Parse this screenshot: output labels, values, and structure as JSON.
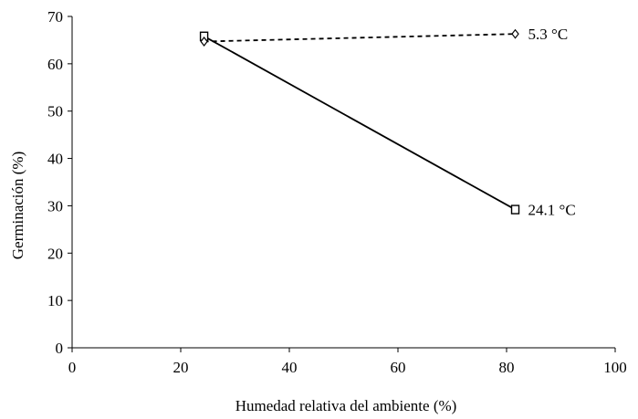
{
  "chart_data": {
    "type": "line",
    "title": "",
    "xlabel": "Humedad relativa del ambiente (%)",
    "ylabel": "Germinación (%)",
    "xlim": [
      0,
      100
    ],
    "ylim": [
      0,
      70
    ],
    "xticks": [
      0,
      20,
      40,
      60,
      80,
      100
    ],
    "yticks": [
      0,
      10,
      20,
      30,
      40,
      50,
      60,
      70
    ],
    "grid": false,
    "legend": "none",
    "series": [
      {
        "name": "24.1 °C",
        "line_style": "solid",
        "marker": "square",
        "x": [
          24.3,
          81.6
        ],
        "y": [
          65.8,
          29.2
        ]
      },
      {
        "name": "5.3 °C",
        "line_style": "dashed",
        "marker": "diamond",
        "x": [
          24.3,
          81.6
        ],
        "y": [
          64.7,
          66.3
        ]
      }
    ]
  }
}
